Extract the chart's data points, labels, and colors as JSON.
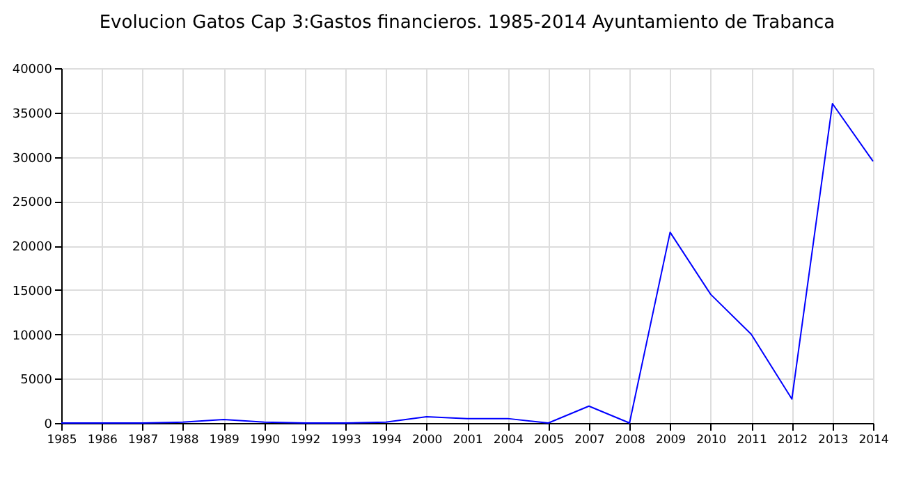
{
  "chart_data": {
    "type": "line",
    "title": "Evolucion Gatos Cap 3:Gastos financieros. 1985-2014 Ayuntamiento de Trabanca",
    "categories": [
      "1985",
      "1986",
      "1987",
      "1988",
      "1989",
      "1990",
      "1992",
      "1993",
      "1994",
      "2000",
      "2001",
      "2004",
      "2005",
      "2007",
      "2008",
      "2009",
      "2010",
      "2011",
      "2012",
      "2013",
      "2014"
    ],
    "series": [
      {
        "color": "#0000ff",
        "values": [
          0,
          0,
          0,
          100,
          400,
          100,
          0,
          0,
          100,
          700,
          500,
          500,
          0,
          1900,
          0,
          21500,
          14500,
          10000,
          2700,
          36000,
          29500
        ]
      }
    ],
    "ylim": [
      0,
      40000
    ],
    "yticks": [
      0,
      5000,
      10000,
      15000,
      20000,
      25000,
      30000,
      35000,
      40000
    ],
    "grid": true,
    "marker": "none",
    "line_style": "solid"
  }
}
